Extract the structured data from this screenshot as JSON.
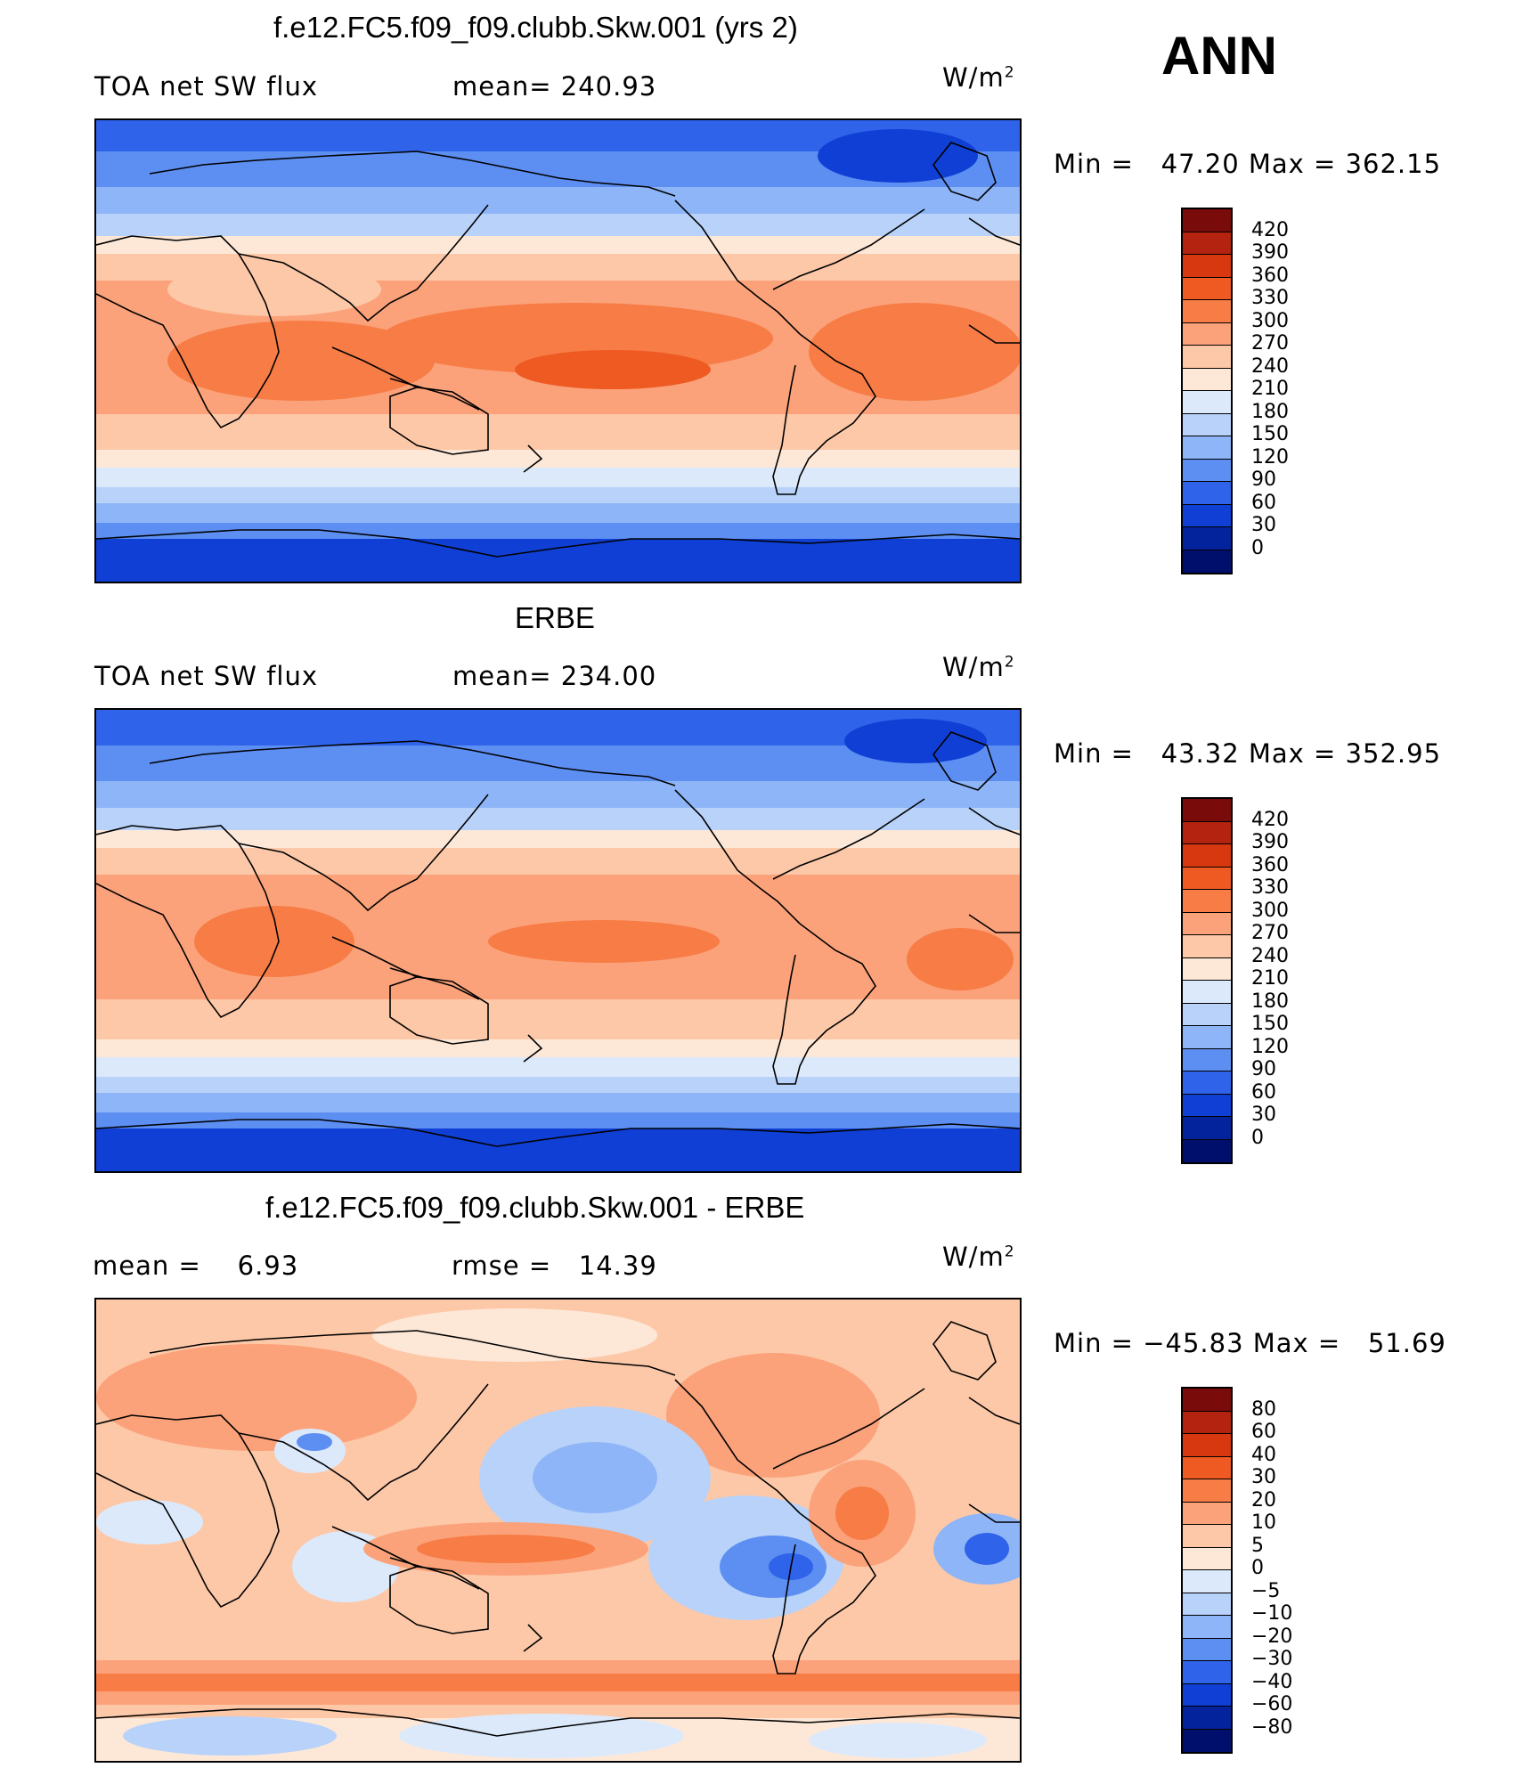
{
  "season": "ANN",
  "units_base": "W/m",
  "units_exp": "2",
  "panels": [
    {
      "title": "f.e12.FC5.f09_f09.clubb.Skw.001 (yrs 2)",
      "left_label": "TOA net SW flux",
      "center_label": "mean= 240.93",
      "minmax": "Min =   47.20 Max = 362.15",
      "colorbar": [
        "420",
        "390",
        "360",
        "330",
        "300",
        "270",
        "240",
        "210",
        "180",
        "150",
        "120",
        "90",
        "60",
        "30",
        "0"
      ]
    },
    {
      "title": "ERBE",
      "left_label": "TOA net SW flux",
      "center_label": "mean= 234.00",
      "minmax": "Min =   43.32 Max = 352.95",
      "colorbar": [
        "420",
        "390",
        "360",
        "330",
        "300",
        "270",
        "240",
        "210",
        "180",
        "150",
        "120",
        "90",
        "60",
        "30",
        "0"
      ]
    },
    {
      "title": "f.e12.FC5.f09_f09.clubb.Skw.001 - ERBE",
      "left_label": "mean =    6.93",
      "center_label": "rmse =   14.39",
      "minmax": "Min = −45.83 Max =   51.69",
      "colorbar": [
        "80",
        "60",
        "40",
        "30",
        "20",
        "10",
        "5",
        "0",
        "−5",
        "−10",
        "−20",
        "−30",
        "−40",
        "−60",
        "−80"
      ]
    }
  ],
  "colors": {
    "abs_scale": [
      "#7a0b0b",
      "#b42210",
      "#d8380f",
      "#ef5a23",
      "#f77c46",
      "#fba27a",
      "#fdc8a8",
      "#fde8d8",
      "#dce9fb",
      "#b9d2fa",
      "#8eb5f7",
      "#5d8ff2",
      "#2f63ea",
      "#0f3fd4",
      "#02239b",
      "#000f6b"
    ],
    "diff_scale": [
      "#7a0b0b",
      "#b42210",
      "#d8380f",
      "#ef5a23",
      "#f77c46",
      "#fba27a",
      "#fdc8a8",
      "#fde8d8",
      "#dce9fb",
      "#b9d2fa",
      "#8eb5f7",
      "#5d8ff2",
      "#2f63ea",
      "#0f3fd4",
      "#02239b",
      "#000f6b"
    ]
  },
  "chart_data": [
    {
      "type": "heatmap",
      "title": "f.e12.FC5.f09_f09.clubb.Skw.001 (yrs 2)",
      "variable": "TOA net SW flux",
      "units": "W/m2",
      "mean": 240.93,
      "min": 47.2,
      "max": 362.15,
      "levels": [
        0,
        30,
        60,
        90,
        120,
        150,
        180,
        210,
        240,
        270,
        300,
        330,
        360,
        390,
        420
      ]
    },
    {
      "type": "heatmap",
      "title": "ERBE",
      "variable": "TOA net SW flux",
      "units": "W/m2",
      "mean": 234.0,
      "min": 43.32,
      "max": 352.95,
      "levels": [
        0,
        30,
        60,
        90,
        120,
        150,
        180,
        210,
        240,
        270,
        300,
        330,
        360,
        390,
        420
      ]
    },
    {
      "type": "heatmap",
      "title": "f.e12.FC5.f09_f09.clubb.Skw.001 - ERBE",
      "units": "W/m2",
      "mean": 6.93,
      "rmse": 14.39,
      "min": -45.83,
      "max": 51.69,
      "levels": [
        -80,
        -60,
        -40,
        -30,
        -20,
        -10,
        -5,
        0,
        5,
        10,
        20,
        30,
        40,
        60,
        80
      ]
    }
  ]
}
